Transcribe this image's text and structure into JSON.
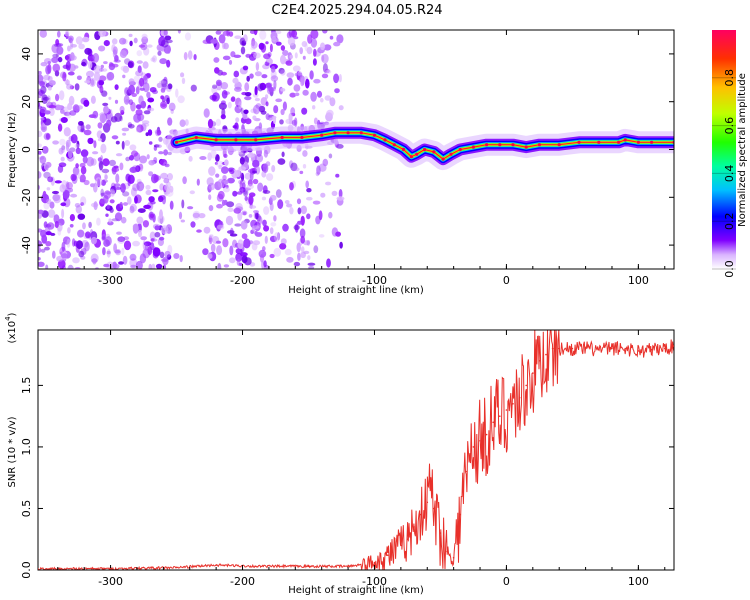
{
  "title": "C2E4.2025.294.04.05.R24",
  "colors": {
    "snr_line": "#e8302a",
    "axis": "#000000"
  },
  "chart_data": [
    {
      "type": "heatmap",
      "name": "spectrogram",
      "xlabel": "Height of straight line (km)",
      "ylabel": "Frequency (Hz)",
      "xlim": [
        -355,
        127
      ],
      "ylim": [
        -50,
        50
      ],
      "xticks": [
        -300,
        -200,
        -100,
        0,
        100
      ],
      "yticks": [
        -40,
        -20,
        0,
        20,
        40
      ],
      "xtick_labels": [
        "-300",
        "-200",
        "-100",
        "0",
        "100"
      ],
      "ytick_labels": [
        "-40",
        "-20",
        "0",
        "20",
        "40"
      ],
      "noise_region": [
        -355,
        -125
      ],
      "ridge": {
        "x": [
          -250,
          -235,
          -220,
          -205,
          -190,
          -170,
          -155,
          -140,
          -130,
          -120,
          -110,
          -100,
          -92,
          -85,
          -78,
          -72,
          -68,
          -62,
          -55,
          -48,
          -42,
          -35,
          -25,
          -15,
          -5,
          5,
          15,
          25,
          40,
          55,
          70,
          85,
          90,
          100,
          110,
          127
        ],
        "y": [
          3,
          5,
          4,
          4,
          4,
          5,
          5,
          6,
          7,
          7,
          7,
          6,
          4,
          2,
          0,
          -3,
          -2,
          0,
          -1,
          -4,
          -2,
          0,
          1,
          2,
          2,
          2,
          1,
          2,
          2,
          3,
          3,
          3,
          4,
          3,
          3,
          3
        ]
      },
      "colorbar": {
        "label": "Normalized spectral amplitude",
        "range": [
          0.0,
          1.0
        ],
        "ticks": [
          0.0,
          0.2,
          0.4,
          0.6,
          0.8
        ],
        "tick_labels": [
          "0.0",
          "0.2",
          "0.4",
          "0.6",
          "0.8"
        ]
      }
    },
    {
      "type": "line",
      "name": "snr",
      "xlabel": "Height of straight line (km)",
      "ylabel": "SNR (10 * v/v)",
      "y_multiplier_label": "(x10",
      "y_multiplier_exp": "4",
      "xlim": [
        -355,
        127
      ],
      "ylim": [
        0.0,
        1.95
      ],
      "xticks": [
        -300,
        -200,
        -100,
        0,
        100
      ],
      "yticks": [
        0.0,
        0.5,
        1.0,
        1.5
      ],
      "xtick_labels": [
        "-300",
        "-200",
        "-100",
        "0",
        "100"
      ],
      "ytick_labels": [
        "0.0",
        "0.5",
        "1.0",
        "1.5"
      ],
      "series": [
        {
          "name": "SNR",
          "x": [
            -355,
            -300,
            -250,
            -220,
            -190,
            -150,
            -120,
            -100,
            -90,
            -80,
            -75,
            -70,
            -65,
            -60,
            -58,
            -55,
            -50,
            -45,
            -40,
            -35,
            -30,
            -25,
            -20,
            -15,
            -10,
            -5,
            0,
            5,
            10,
            15,
            20,
            25,
            30,
            35,
            40,
            50,
            60,
            70,
            80,
            90,
            100,
            110,
            120,
            127
          ],
          "y": [
            0.01,
            0.01,
            0.02,
            0.04,
            0.03,
            0.03,
            0.03,
            0.06,
            0.12,
            0.2,
            0.25,
            0.35,
            0.45,
            0.55,
            0.75,
            0.5,
            0.3,
            0.15,
            0.1,
            0.45,
            0.8,
            1.0,
            1.05,
            1.1,
            1.2,
            1.25,
            1.3,
            1.35,
            1.4,
            1.5,
            1.6,
            1.7,
            1.75,
            1.8,
            1.8,
            1.8,
            1.8,
            1.79,
            1.8,
            1.8,
            1.78,
            1.79,
            1.8,
            1.82
          ]
        }
      ]
    }
  ]
}
